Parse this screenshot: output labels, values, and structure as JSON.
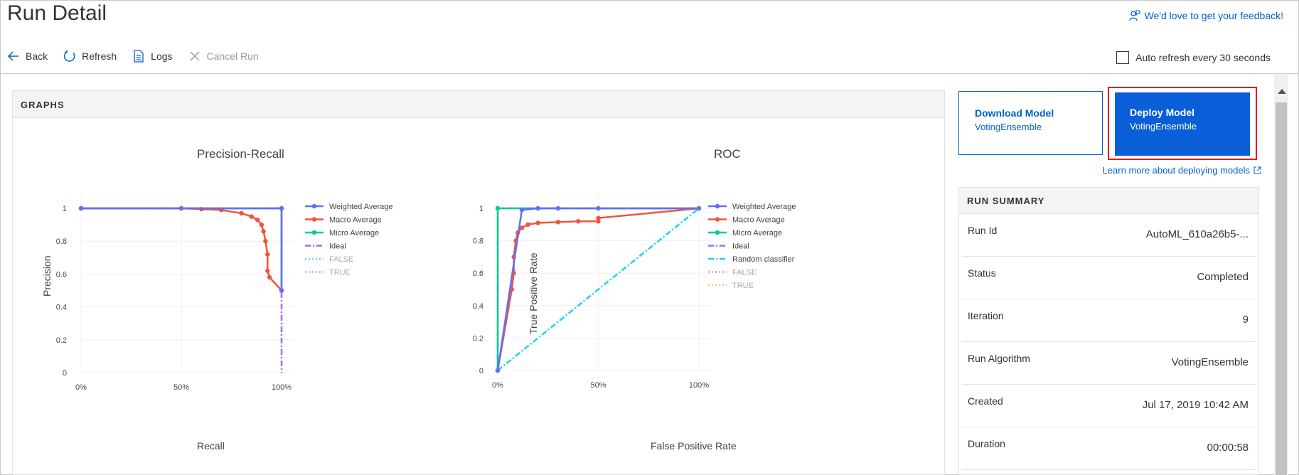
{
  "page": {
    "title": "Run Detail",
    "feedback": "We'd love to get your feedback!"
  },
  "toolbar": {
    "back": "Back",
    "refresh": "Refresh",
    "logs": "Logs",
    "cancel": "Cancel Run",
    "autorefresh": "Auto refresh every 30 seconds"
  },
  "graphs": {
    "header": "GRAPHS"
  },
  "chart_data": [
    {
      "type": "line",
      "title": "Precision-Recall",
      "xlabel": "Recall",
      "ylabel": "Precision",
      "x_ticks": [
        "0%",
        "50%",
        "100%"
      ],
      "y_ticks": [
        "0",
        "0.2",
        "0.4",
        "0.6",
        "0.8",
        "1"
      ],
      "xlim": [
        0,
        1
      ],
      "ylim": [
        0,
        1
      ],
      "legend": [
        "Weighted Average",
        "Macro Average",
        "Micro Average",
        "Ideal",
        "FALSE",
        "TRUE"
      ],
      "series": [
        {
          "name": "Weighted Average",
          "color": "#636efa",
          "x": [
            0,
            0.5,
            1,
            1
          ],
          "y": [
            1,
            1,
            1,
            0.5
          ]
        },
        {
          "name": "Macro Average",
          "color": "#ef553b",
          "x": [
            0,
            0.5,
            0.6,
            0.7,
            0.8,
            0.85,
            0.88,
            0.9,
            0.91,
            0.92,
            0.93,
            0.93,
            0.94,
            1
          ],
          "y": [
            1,
            1,
            0.995,
            0.99,
            0.97,
            0.95,
            0.93,
            0.9,
            0.86,
            0.8,
            0.72,
            0.62,
            0.58,
            0.5
          ]
        },
        {
          "name": "Micro Average",
          "color": "#00cc96",
          "x": [
            0,
            1,
            1
          ],
          "y": [
            1,
            1,
            0.5
          ]
        },
        {
          "name": "Ideal",
          "color": "#ab63fa",
          "x": [
            0,
            1,
            1
          ],
          "y": [
            1,
            1,
            0
          ]
        },
        {
          "name": "FALSE",
          "color": "#5ad5e6",
          "x": [
            0,
            1,
            1
          ],
          "y": [
            1,
            1,
            0.5
          ]
        },
        {
          "name": "TRUE",
          "color": "#f58fd8",
          "x": [
            0,
            1,
            1
          ],
          "y": [
            1,
            1,
            0.5
          ]
        }
      ]
    },
    {
      "type": "line",
      "title": "ROC",
      "xlabel": "False Positive Rate",
      "ylabel": "True Positive Rate",
      "x_ticks": [
        "0%",
        "50%",
        "100%"
      ],
      "y_ticks": [
        "0",
        "0.2",
        "0.4",
        "0.6",
        "0.8",
        "1"
      ],
      "xlim": [
        0,
        1
      ],
      "ylim": [
        0,
        1
      ],
      "legend": [
        "Weighted Average",
        "Macro Average",
        "Micro Average",
        "Ideal",
        "Random classifier",
        "FALSE",
        "TRUE"
      ],
      "series": [
        {
          "name": "Weighted Average",
          "color": "#636efa",
          "x": [
            0,
            0.12,
            0.2,
            0.3,
            0.5,
            1
          ],
          "y": [
            0,
            0.99,
            1,
            1,
            1,
            1
          ]
        },
        {
          "name": "Macro Average",
          "color": "#ef553b",
          "x": [
            0,
            0.07,
            0.08,
            0.08,
            0.09,
            0.1,
            0.12,
            0.15,
            0.2,
            0.3,
            0.4,
            0.5,
            0.5,
            1
          ],
          "y": [
            0,
            0.5,
            0.6,
            0.7,
            0.8,
            0.85,
            0.88,
            0.9,
            0.91,
            0.915,
            0.92,
            0.92,
            0.94,
            1
          ]
        },
        {
          "name": "Micro Average",
          "color": "#00cc96",
          "x": [
            0,
            0,
            1
          ],
          "y": [
            0,
            1,
            1
          ]
        },
        {
          "name": "Ideal",
          "color": "#ab63fa",
          "x": [
            0,
            0,
            1
          ],
          "y": [
            0,
            1,
            1
          ]
        },
        {
          "name": "Random classifier",
          "color": "#19d3f3",
          "x": [
            0,
            1
          ],
          "y": [
            0,
            1
          ]
        },
        {
          "name": "FALSE",
          "color": "#f58fd8",
          "x": [
            0,
            0,
            1
          ],
          "y": [
            0,
            1,
            1
          ]
        },
        {
          "name": "TRUE",
          "color": "#f7c373",
          "x": [
            0,
            0,
            1
          ],
          "y": [
            0,
            1,
            1
          ]
        }
      ]
    }
  ],
  "actions": {
    "download": {
      "title": "Download Model",
      "subtitle": "VotingEnsemble"
    },
    "deploy": {
      "title": "Deploy Model",
      "subtitle": "VotingEnsemble"
    },
    "learn_more": "Learn more about deploying models"
  },
  "summary": {
    "header": "RUN SUMMARY",
    "rows": [
      {
        "key": "Run Id",
        "value": "AutoML_610a26b5-..."
      },
      {
        "key": "Status",
        "value": "Completed"
      },
      {
        "key": "Iteration",
        "value": "9"
      },
      {
        "key": "Run Algorithm",
        "value": "VotingEnsemble"
      },
      {
        "key": "Created",
        "value": "Jul 17, 2019 10:42 AM"
      },
      {
        "key": "Duration",
        "value": "00:00:58"
      }
    ]
  }
}
